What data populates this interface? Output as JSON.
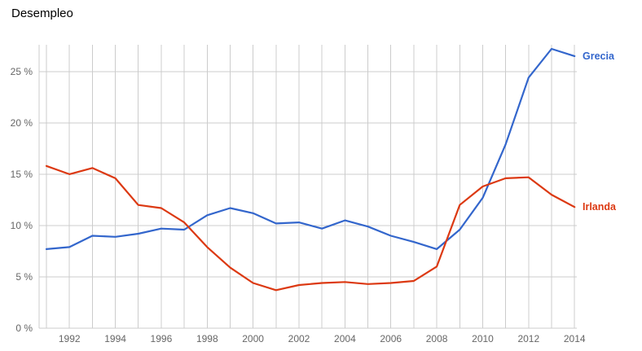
{
  "title": "Desempleo",
  "chart_data": {
    "type": "line",
    "title": "Desempleo",
    "x": [
      1991,
      1992,
      1993,
      1994,
      1995,
      1996,
      1997,
      1998,
      1999,
      2000,
      2001,
      2002,
      2003,
      2004,
      2005,
      2006,
      2007,
      2008,
      2009,
      2010,
      2011,
      2012,
      2013,
      2014
    ],
    "series": [
      {
        "name": "Grecia",
        "color": "#3366cc",
        "values": [
          7.7,
          7.9,
          9.0,
          8.9,
          9.2,
          9.7,
          9.6,
          11.0,
          11.7,
          11.2,
          10.2,
          10.3,
          9.7,
          10.5,
          9.9,
          9.0,
          8.4,
          7.7,
          9.6,
          12.7,
          17.9,
          24.4,
          27.2,
          26.5
        ]
      },
      {
        "name": "Irlanda",
        "color": "#dc3912",
        "values": [
          15.8,
          15.0,
          15.6,
          14.6,
          12.0,
          11.7,
          10.3,
          7.9,
          5.9,
          4.4,
          3.7,
          4.2,
          4.4,
          4.5,
          4.3,
          4.4,
          4.6,
          6.0,
          12.0,
          13.8,
          14.6,
          14.7,
          13.0,
          11.8
        ]
      }
    ],
    "yticks": [
      0,
      5,
      10,
      15,
      20,
      25
    ],
    "ytick_labels": [
      "0 %",
      "5 %",
      "10 %",
      "15 %",
      "20 %",
      "25 %"
    ],
    "xticks": [
      1992,
      1994,
      1996,
      1998,
      2000,
      2002,
      2004,
      2006,
      2008,
      2010,
      2012,
      2014
    ],
    "xlim": [
      1990.68,
      2014.1
    ],
    "ylim": [
      0,
      27.6
    ],
    "grid": true,
    "legend_position": "line-end-labels",
    "colors": {
      "grid": "#cccccc",
      "axis_text": "#666666",
      "background": "#ffffff",
      "title_text": "#000000"
    }
  }
}
